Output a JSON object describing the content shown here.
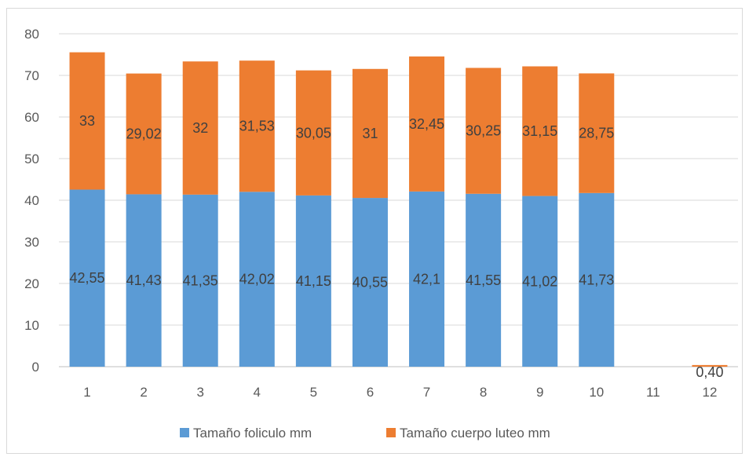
{
  "chart_data": {
    "type": "bar",
    "stacked": true,
    "title": "",
    "xlabel": "",
    "ylabel": "",
    "ylim": [
      0,
      80
    ],
    "yticks": [
      "0",
      "10",
      "20",
      "30",
      "40",
      "50",
      "60",
      "70",
      "80"
    ],
    "grid": true,
    "legend_position": "bottom",
    "categories": [
      "1",
      "2",
      "3",
      "4",
      "5",
      "6",
      "7",
      "8",
      "9",
      "10",
      "11",
      "12"
    ],
    "series": [
      {
        "name": "Tamaño foliculo mm",
        "color": "#5b9bd5",
        "values": [
          42.55,
          41.43,
          41.35,
          42.02,
          41.15,
          40.55,
          42.1,
          41.55,
          41.02,
          41.73,
          null,
          null
        ],
        "labels": [
          "42,55",
          "41,43",
          "41,35",
          "42,02",
          "41,15",
          "40,55",
          "42,1",
          "41,55",
          "41,02",
          "41,73",
          "",
          ""
        ]
      },
      {
        "name": "Tamaño cuerpo luteo mm",
        "color": "#ed7d31",
        "values": [
          33,
          29.02,
          32,
          31.53,
          30.05,
          31,
          32.45,
          30.25,
          31.15,
          28.75,
          null,
          0.4
        ],
        "labels": [
          "33",
          "29,02",
          "32",
          "31,53",
          "30,05",
          "31",
          "32,45",
          "30,25",
          "31,15",
          "28,75",
          "",
          "0,40"
        ]
      }
    ]
  }
}
